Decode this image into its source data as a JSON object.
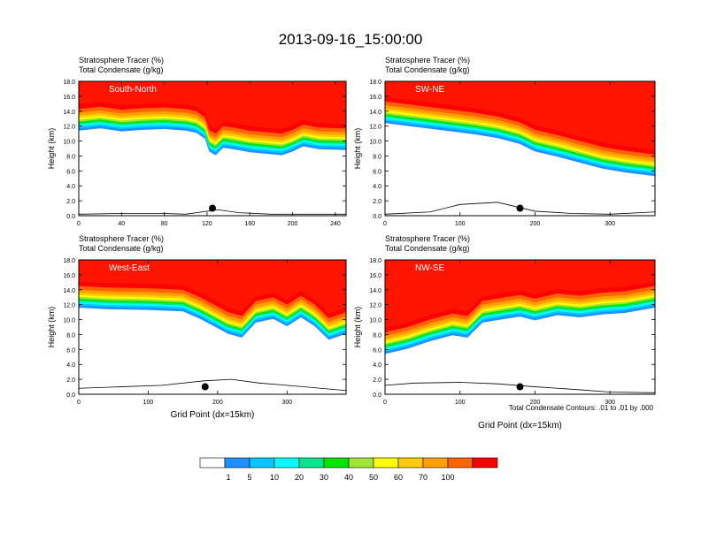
{
  "figure": {
    "title": "2013-09-16_15:00:00",
    "footnote": "Total Condensate Contours: .01 to .01 by .000"
  },
  "chart_data": {
    "type": "heatmap",
    "colorbar": {
      "levels": [
        "1",
        "5",
        "10",
        "20",
        "30",
        "40",
        "50",
        "60",
        "70",
        "100"
      ],
      "colors": [
        "#ffffff",
        "#1e90ff",
        "#00c8ff",
        "#00ffff",
        "#00e68a",
        "#00e600",
        "#a0e632",
        "#ffff00",
        "#ffcc00",
        "#ffa000",
        "#ff6400",
        "#ff0000"
      ]
    },
    "panels": [
      {
        "id": "south-north",
        "label": "South-North",
        "title_line1": "Stratosphere Tracer   (%)",
        "title_line2": "Total Condensate   (g/kg)",
        "ylabel": "Height (km)",
        "xlabel": "",
        "xlim": [
          0,
          250
        ],
        "ylim": [
          0,
          18
        ],
        "xticks": [
          "0",
          "40",
          "80",
          "120",
          "160",
          "200",
          "240"
        ],
        "xtick_values": [
          0,
          40,
          80,
          120,
          160,
          200,
          240
        ],
        "yticks": [
          "0.0",
          "2.0",
          "4.0",
          "6.0",
          "8.0",
          "10.0",
          "12.0",
          "14.0",
          "16.0",
          "18.0"
        ],
        "tropopause": [
          [
            0,
            14.3
          ],
          [
            20,
            14.6
          ],
          [
            40,
            14.2
          ],
          [
            60,
            14.4
          ],
          [
            80,
            14.5
          ],
          [
            100,
            14.3
          ],
          [
            110,
            14.0
          ],
          [
            118,
            13.2
          ],
          [
            122,
            11.5
          ],
          [
            128,
            11.0
          ],
          [
            135,
            12.0
          ],
          [
            145,
            11.8
          ],
          [
            160,
            11.4
          ],
          [
            175,
            11.2
          ],
          [
            190,
            11.0
          ],
          [
            200,
            11.5
          ],
          [
            210,
            12.2
          ],
          [
            225,
            11.8
          ],
          [
            250,
            11.7
          ]
        ],
        "terrain": [
          [
            0,
            0.2
          ],
          [
            40,
            0.3
          ],
          [
            80,
            0.3
          ],
          [
            100,
            0.2
          ],
          [
            130,
            0.8
          ],
          [
            150,
            0.4
          ],
          [
            180,
            0.2
          ],
          [
            250,
            0.2
          ]
        ],
        "marker": [
          [
            125,
            1.0
          ]
        ]
      },
      {
        "id": "sw-ne",
        "label": "SW-NE",
        "title_line1": "Stratosphere Tracer   (%)",
        "title_line2": "Total Condensate   (g/kg)",
        "ylabel": "Height (km)",
        "xlabel": "",
        "xlim": [
          0,
          360
        ],
        "ylim": [
          0,
          18
        ],
        "xticks": [
          "0",
          "100",
          "200",
          "300"
        ],
        "xtick_values": [
          0,
          100,
          200,
          300
        ],
        "yticks": [
          "0.0",
          "2.0",
          "4.0",
          "6.0",
          "8.0",
          "10.0",
          "12.0",
          "14.0",
          "16.0",
          "18.0"
        ],
        "tropopause": [
          [
            0,
            15.3
          ],
          [
            40,
            14.8
          ],
          [
            80,
            14.3
          ],
          [
            120,
            13.8
          ],
          [
            150,
            13.3
          ],
          [
            180,
            12.5
          ],
          [
            200,
            11.5
          ],
          [
            230,
            10.8
          ],
          [
            260,
            10.0
          ],
          [
            290,
            9.2
          ],
          [
            320,
            8.7
          ],
          [
            360,
            8.2
          ]
        ],
        "terrain": [
          [
            0,
            0.2
          ],
          [
            60,
            0.5
          ],
          [
            100,
            1.5
          ],
          [
            150,
            1.8
          ],
          [
            200,
            0.6
          ],
          [
            250,
            0.3
          ],
          [
            300,
            0.2
          ],
          [
            360,
            0.5
          ]
        ],
        "marker": [
          [
            180,
            1.0
          ]
        ]
      },
      {
        "id": "west-east",
        "label": "West-East",
        "title_line1": "Stratosphere Tracer   (%)",
        "title_line2": "Total Condensate   (g/kg)",
        "ylabel": "Height (km)",
        "xlabel": "Grid Point (dx=15km)",
        "xlim": [
          0,
          385
        ],
        "ylim": [
          0,
          18
        ],
        "xticks": [
          "0",
          "100",
          "200",
          "300"
        ],
        "xtick_values": [
          0,
          100,
          200,
          300
        ],
        "yticks": [
          "0.0",
          "2.0",
          "4.0",
          "6.0",
          "8.0",
          "10.0",
          "12.0",
          "14.0",
          "16.0",
          "18.0"
        ],
        "tropopause": [
          [
            0,
            14.5
          ],
          [
            40,
            14.3
          ],
          [
            100,
            14.2
          ],
          [
            150,
            14.0
          ],
          [
            175,
            13.0
          ],
          [
            195,
            12.0
          ],
          [
            215,
            11.0
          ],
          [
            235,
            10.5
          ],
          [
            255,
            12.5
          ],
          [
            280,
            13.0
          ],
          [
            300,
            12.0
          ],
          [
            320,
            13.2
          ],
          [
            340,
            12.0
          ],
          [
            360,
            10.2
          ],
          [
            385,
            11.0
          ]
        ],
        "terrain": [
          [
            0,
            0.8
          ],
          [
            60,
            1.0
          ],
          [
            120,
            1.2
          ],
          [
            180,
            1.8
          ],
          [
            220,
            2.0
          ],
          [
            260,
            1.5
          ],
          [
            300,
            1.2
          ],
          [
            385,
            0.5
          ]
        ],
        "marker": [
          [
            182,
            1.0
          ]
        ]
      },
      {
        "id": "nw-se",
        "label": "NW-SE",
        "title_line1": "Stratosphere Tracer   (%)",
        "title_line2": "Total Condensate   (g/kg)",
        "ylabel": "Height (km)",
        "xlabel": "Grid Point (dx=15km)",
        "xlim": [
          0,
          360
        ],
        "ylim": [
          0,
          18
        ],
        "xticks": [
          "0",
          "100",
          "200",
          "300"
        ],
        "xtick_values": [
          0,
          100,
          200,
          300
        ],
        "yticks": [
          "0.0",
          "2.0",
          "4.0",
          "6.0",
          "8.0",
          "10.0",
          "12.0",
          "14.0",
          "16.0",
          "18.0"
        ],
        "tropopause": [
          [
            0,
            8.3
          ],
          [
            30,
            9.0
          ],
          [
            60,
            10.0
          ],
          [
            90,
            10.8
          ],
          [
            110,
            10.5
          ],
          [
            130,
            12.5
          ],
          [
            160,
            13.0
          ],
          [
            180,
            13.3
          ],
          [
            200,
            12.8
          ],
          [
            230,
            13.5
          ],
          [
            260,
            13.2
          ],
          [
            290,
            13.6
          ],
          [
            320,
            13.8
          ],
          [
            360,
            14.5
          ]
        ],
        "terrain": [
          [
            0,
            1.2
          ],
          [
            40,
            1.5
          ],
          [
            100,
            1.6
          ],
          [
            150,
            1.4
          ],
          [
            200,
            1.0
          ],
          [
            260,
            0.6
          ],
          [
            300,
            0.3
          ],
          [
            360,
            0.2
          ]
        ],
        "marker": [
          [
            180,
            1.0
          ]
        ]
      }
    ]
  }
}
